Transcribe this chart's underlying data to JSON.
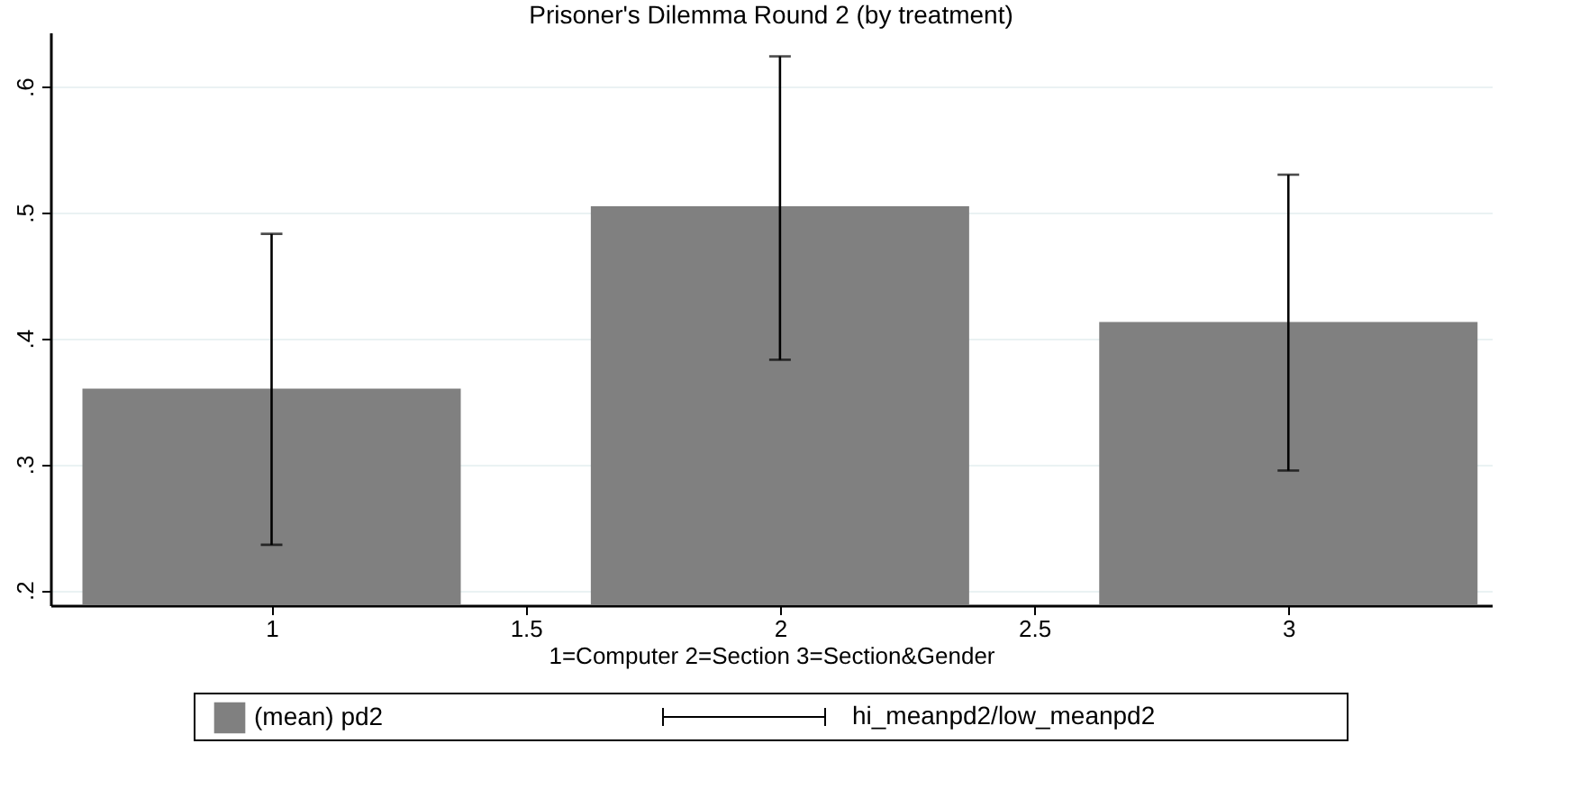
{
  "chart_data": {
    "type": "bar",
    "title": "Prisoner's Dilemma Round 2 (by treatment)",
    "xlabel": "1=Computer 2=Section 3=Section&Gender",
    "x": [
      1,
      2,
      3
    ],
    "series": [
      {
        "name": "(mean) pd2",
        "color": "#808080",
        "values": [
          0.36,
          0.505,
          0.413
        ],
        "errors": [
          [
            0.236,
            0.483
          ],
          [
            0.383,
            0.624
          ],
          [
            0.295,
            0.53
          ]
        ]
      }
    ],
    "annotations": [
      "hi_meanpd2/low_meanpd2"
    ],
    "xlim": [
      0.565,
      3.4
    ],
    "xticks": [
      1,
      1.5,
      2,
      2.5,
      3
    ],
    "ylim": [
      0.188,
      0.643
    ],
    "yticks": [
      {
        "value": 0.2,
        "label": ".2"
      },
      {
        "value": 0.3,
        "label": ".3"
      },
      {
        "value": 0.4,
        "label": ".4"
      },
      {
        "value": 0.5,
        "label": ".5"
      },
      {
        "value": 0.6,
        "label": ".6"
      }
    ],
    "grid": "y",
    "legend": "bottom"
  }
}
